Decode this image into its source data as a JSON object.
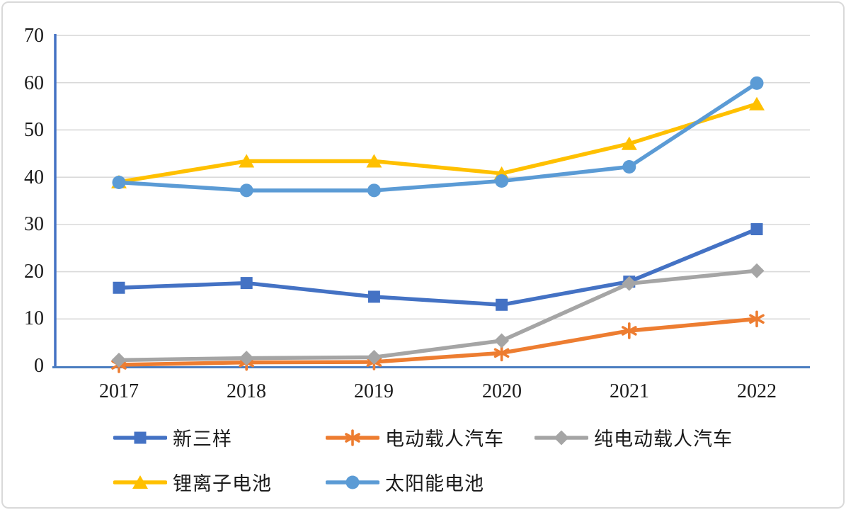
{
  "chart_data": {
    "type": "line",
    "title": "",
    "xlabel": "",
    "ylabel": "",
    "x": [
      2017,
      2018,
      2019,
      2020,
      2021,
      2022
    ],
    "xticks": [
      "2017",
      "2018",
      "2019",
      "2020",
      "2021",
      "2022"
    ],
    "yticks": [
      0,
      10,
      20,
      30,
      40,
      50,
      60,
      70
    ],
    "ylim": [
      0,
      70
    ],
    "grid": true,
    "legend_position": "bottom",
    "gridline_color": "#d9d9d9",
    "axis_color": "#4472c4",
    "series": [
      {
        "name": "新三样",
        "color": "#4472c4",
        "marker": "square",
        "values": [
          16.6,
          17.6,
          14.7,
          13.0,
          17.9,
          29.0
        ]
      },
      {
        "name": "电动载人汽车",
        "color": "#ed7d31",
        "marker": "asterisk",
        "values": [
          0.3,
          0.8,
          0.9,
          2.8,
          7.5,
          10.0
        ]
      },
      {
        "name": "纯电动载人汽车",
        "color": "#a5a5a5",
        "marker": "diamond",
        "values": [
          1.3,
          1.7,
          1.9,
          5.4,
          17.5,
          20.2
        ]
      },
      {
        "name": "锂离子电池",
        "color": "#ffc000",
        "marker": "triangle",
        "values": [
          39.0,
          43.4,
          43.4,
          40.8,
          47.1,
          55.5
        ]
      },
      {
        "name": "太阳能电池",
        "color": "#5b9bd5",
        "marker": "circle",
        "values": [
          38.9,
          37.2,
          37.2,
          39.2,
          42.2,
          59.9
        ]
      }
    ]
  }
}
